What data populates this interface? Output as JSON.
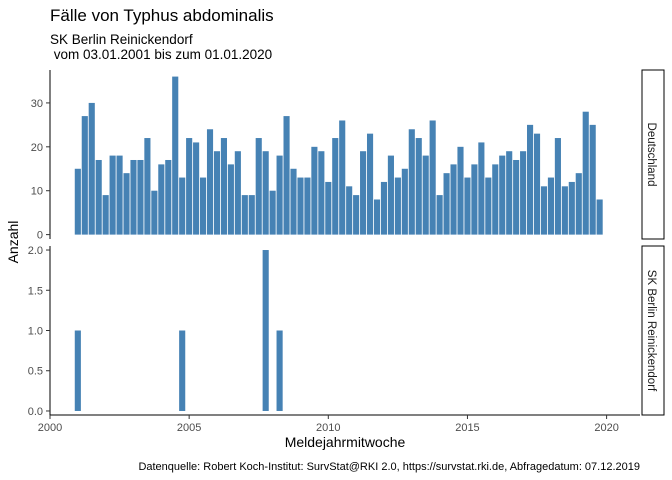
{
  "chart_data": {
    "type": "bar",
    "title": "Fälle von Typhus abdominalis",
    "subtitle_line1": "SK Berlin Reinickendorf",
    "subtitle_line2": " vom 03.01.2001 bis zum 01.01.2020",
    "xlabel": "Meldejahrmitwoche",
    "ylabel": "Anzahl",
    "caption": "Datenquelle: Robert Koch-Institut: SurvStat@RKI 2.0, https://survstat.rki.de, Abfragedatum: 07.12.2019",
    "bar_color": "#4682b4",
    "xlim": [
      2000,
      2021.2
    ],
    "x_ticks": [
      2000,
      2005,
      2010,
      2015,
      2020
    ],
    "grid": false,
    "facets": [
      {
        "name": "Deutschland",
        "ylim": [
          -1,
          37.5
        ],
        "y_ticks": [
          0,
          10,
          20,
          30
        ],
        "bars": [
          {
            "x": 2001.0,
            "y": 15
          },
          {
            "x": 2001.25,
            "y": 27
          },
          {
            "x": 2001.5,
            "y": 30
          },
          {
            "x": 2001.75,
            "y": 17
          },
          {
            "x": 2002.0,
            "y": 9
          },
          {
            "x": 2002.25,
            "y": 18
          },
          {
            "x": 2002.5,
            "y": 18
          },
          {
            "x": 2002.75,
            "y": 14
          },
          {
            "x": 2003.0,
            "y": 17
          },
          {
            "x": 2003.25,
            "y": 17
          },
          {
            "x": 2003.5,
            "y": 22
          },
          {
            "x": 2003.75,
            "y": 10
          },
          {
            "x": 2004.0,
            "y": 16
          },
          {
            "x": 2004.25,
            "y": 17
          },
          {
            "x": 2004.5,
            "y": 36
          },
          {
            "x": 2004.75,
            "y": 13
          },
          {
            "x": 2005.0,
            "y": 22
          },
          {
            "x": 2005.25,
            "y": 21
          },
          {
            "x": 2005.5,
            "y": 13
          },
          {
            "x": 2005.75,
            "y": 24
          },
          {
            "x": 2006.0,
            "y": 19
          },
          {
            "x": 2006.25,
            "y": 22
          },
          {
            "x": 2006.5,
            "y": 16
          },
          {
            "x": 2006.75,
            "y": 19
          },
          {
            "x": 2007.0,
            "y": 9
          },
          {
            "x": 2007.25,
            "y": 9
          },
          {
            "x": 2007.5,
            "y": 22
          },
          {
            "x": 2007.75,
            "y": 19
          },
          {
            "x": 2008.0,
            "y": 10
          },
          {
            "x": 2008.25,
            "y": 18
          },
          {
            "x": 2008.5,
            "y": 27
          },
          {
            "x": 2008.75,
            "y": 15
          },
          {
            "x": 2009.0,
            "y": 13
          },
          {
            "x": 2009.25,
            "y": 13
          },
          {
            "x": 2009.5,
            "y": 20
          },
          {
            "x": 2009.75,
            "y": 19
          },
          {
            "x": 2010.0,
            "y": 12
          },
          {
            "x": 2010.25,
            "y": 22
          },
          {
            "x": 2010.5,
            "y": 26
          },
          {
            "x": 2010.75,
            "y": 11
          },
          {
            "x": 2011.0,
            "y": 9
          },
          {
            "x": 2011.25,
            "y": 19
          },
          {
            "x": 2011.5,
            "y": 23
          },
          {
            "x": 2011.75,
            "y": 8
          },
          {
            "x": 2012.0,
            "y": 12
          },
          {
            "x": 2012.25,
            "y": 18
          },
          {
            "x": 2012.5,
            "y": 13
          },
          {
            "x": 2012.75,
            "y": 15
          },
          {
            "x": 2013.0,
            "y": 24
          },
          {
            "x": 2013.25,
            "y": 22
          },
          {
            "x": 2013.5,
            "y": 18
          },
          {
            "x": 2013.75,
            "y": 26
          },
          {
            "x": 2014.0,
            "y": 9
          },
          {
            "x": 2014.25,
            "y": 14
          },
          {
            "x": 2014.5,
            "y": 16
          },
          {
            "x": 2014.75,
            "y": 20
          },
          {
            "x": 2015.0,
            "y": 13
          },
          {
            "x": 2015.25,
            "y": 16
          },
          {
            "x": 2015.5,
            "y": 21
          },
          {
            "x": 2015.75,
            "y": 13
          },
          {
            "x": 2016.0,
            "y": 16
          },
          {
            "x": 2016.25,
            "y": 18
          },
          {
            "x": 2016.5,
            "y": 19
          },
          {
            "x": 2016.75,
            "y": 17
          },
          {
            "x": 2017.0,
            "y": 19
          },
          {
            "x": 2017.25,
            "y": 25
          },
          {
            "x": 2017.5,
            "y": 23
          },
          {
            "x": 2017.75,
            "y": 11
          },
          {
            "x": 2018.0,
            "y": 13
          },
          {
            "x": 2018.25,
            "y": 22
          },
          {
            "x": 2018.5,
            "y": 11
          },
          {
            "x": 2018.75,
            "y": 12
          },
          {
            "x": 2019.0,
            "y": 14
          },
          {
            "x": 2019.25,
            "y": 28
          },
          {
            "x": 2019.5,
            "y": 25
          },
          {
            "x": 2019.75,
            "y": 8
          }
        ]
      },
      {
        "name": "SK Berlin Reinickendorf",
        "ylim": [
          -0.05,
          2.05
        ],
        "y_ticks": [
          0.0,
          0.5,
          1.0,
          1.5,
          2.0
        ],
        "y_tick_labels": [
          "0.0",
          "0.5",
          "1.0",
          "1.5",
          "2.0"
        ],
        "bars": [
          {
            "x": 2001.0,
            "y": 1
          },
          {
            "x": 2004.75,
            "y": 1
          },
          {
            "x": 2007.75,
            "y": 2
          },
          {
            "x": 2008.25,
            "y": 1
          }
        ]
      }
    ]
  }
}
